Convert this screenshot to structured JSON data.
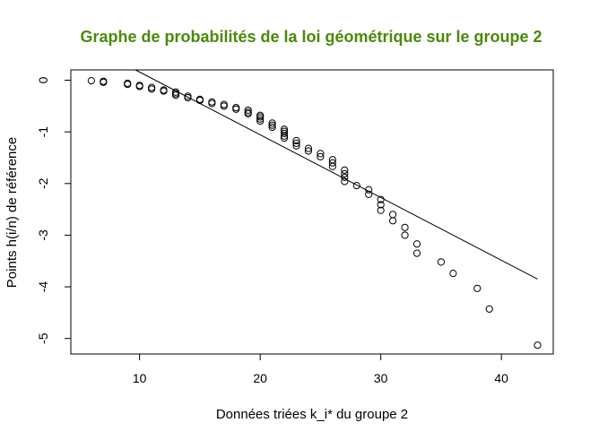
{
  "chart_data": {
    "type": "scatter",
    "title": "Graphe de probabilités de la loi géométrique sur le groupe 2",
    "title_color": "#4a8a08",
    "xlabel": "Données triées k_i* du groupe 2",
    "ylabel": "Points h(i/n) de référence",
    "xlim": [
      4.3,
      44.3
    ],
    "ylim": [
      -5.3,
      0.2
    ],
    "x_ticks": [
      10,
      20,
      30,
      40
    ],
    "y_ticks": [
      0,
      -1,
      -2,
      -3,
      -4,
      -5
    ],
    "grid": false,
    "legend": "none",
    "series": [
      {
        "marker": "open-circle",
        "color": "#000000",
        "points": [
          [
            6,
            -0.01
          ],
          [
            7,
            -0.02
          ],
          [
            7,
            -0.04
          ],
          [
            9,
            -0.06
          ],
          [
            9,
            -0.08
          ],
          [
            10,
            -0.1
          ],
          [
            10,
            -0.12
          ],
          [
            11,
            -0.14
          ],
          [
            11,
            -0.17
          ],
          [
            12,
            -0.19
          ],
          [
            12,
            -0.21
          ],
          [
            13,
            -0.23
          ],
          [
            13,
            -0.26
          ],
          [
            13,
            -0.29
          ],
          [
            14,
            -0.31
          ],
          [
            14,
            -0.34
          ],
          [
            15,
            -0.37
          ],
          [
            15,
            -0.39
          ],
          [
            16,
            -0.42
          ],
          [
            16,
            -0.45
          ],
          [
            17,
            -0.47
          ],
          [
            17,
            -0.5
          ],
          [
            18,
            -0.53
          ],
          [
            18,
            -0.56
          ],
          [
            19,
            -0.58
          ],
          [
            19,
            -0.62
          ],
          [
            19,
            -0.65
          ],
          [
            20,
            -0.68
          ],
          [
            20,
            -0.71
          ],
          [
            20,
            -0.75
          ],
          [
            20,
            -0.79
          ],
          [
            21,
            -0.83
          ],
          [
            21,
            -0.87
          ],
          [
            21,
            -0.91
          ],
          [
            22,
            -0.95
          ],
          [
            22,
            -0.99
          ],
          [
            22,
            -1.03
          ],
          [
            22,
            -1.08
          ],
          [
            22,
            -1.12
          ],
          [
            23,
            -1.17
          ],
          [
            23,
            -1.22
          ],
          [
            23,
            -1.27
          ],
          [
            24,
            -1.32
          ],
          [
            24,
            -1.37
          ],
          [
            25,
            -1.42
          ],
          [
            25,
            -1.48
          ],
          [
            26,
            -1.54
          ],
          [
            26,
            -1.6
          ],
          [
            26,
            -1.67
          ],
          [
            27,
            -1.74
          ],
          [
            27,
            -1.81
          ],
          [
            27,
            -1.88
          ],
          [
            27,
            -1.96
          ],
          [
            28,
            -2.04
          ],
          [
            29,
            -2.12
          ],
          [
            29,
            -2.21
          ],
          [
            30,
            -2.31
          ],
          [
            30,
            -2.41
          ],
          [
            30,
            -2.52
          ],
          [
            31,
            -2.6
          ],
          [
            31,
            -2.72
          ],
          [
            32,
            -2.85
          ],
          [
            32,
            -3.0
          ],
          [
            33,
            -3.17
          ],
          [
            33,
            -3.35
          ],
          [
            35,
            -3.52
          ],
          [
            36,
            -3.74
          ],
          [
            38,
            -4.03
          ],
          [
            39,
            -4.43
          ],
          [
            43,
            -5.13
          ]
        ]
      }
    ],
    "fit_line": {
      "x": [
        9.66,
        43
      ],
      "y": [
        0.2,
        -3.85
      ]
    }
  }
}
